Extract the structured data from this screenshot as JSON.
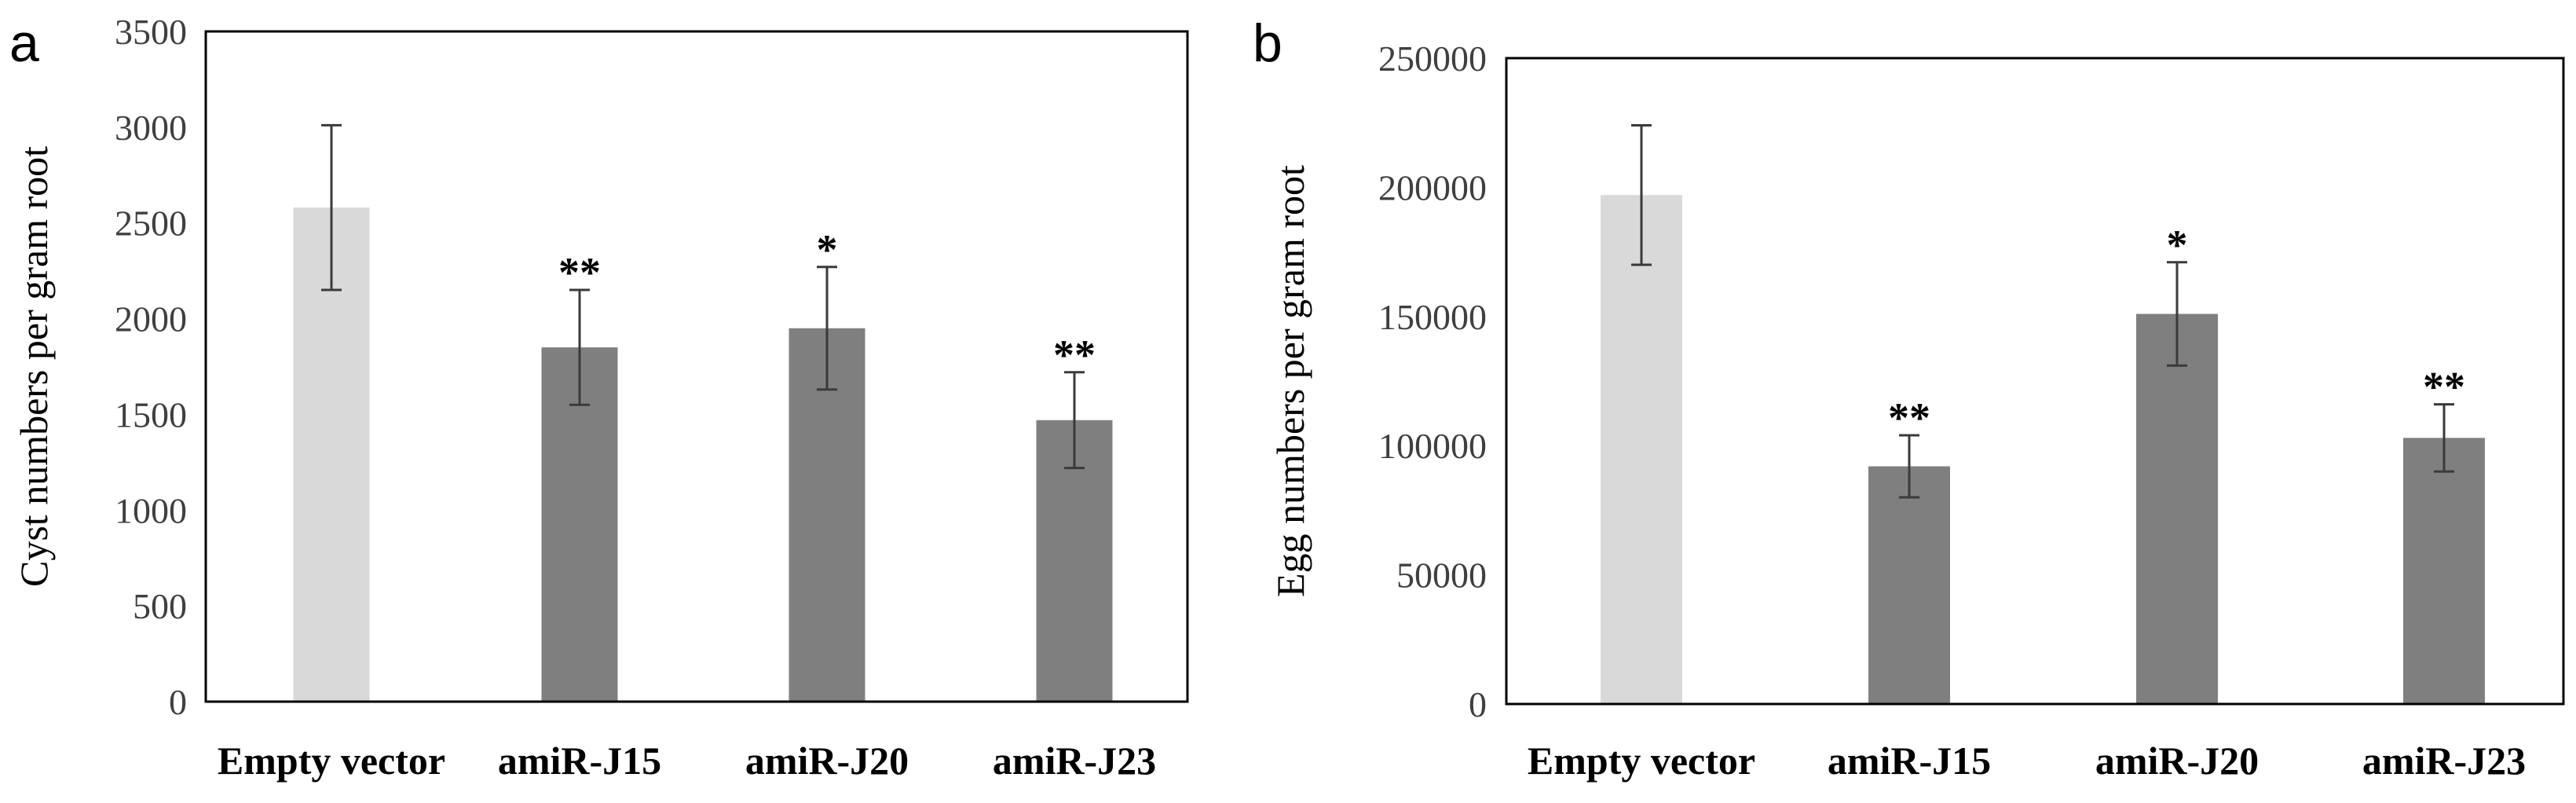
{
  "chart_data": [
    {
      "type": "bar",
      "panel": "a",
      "ylabel": "Cyst numbers per gram root",
      "ylim": [
        0,
        3500
      ],
      "yticks": [
        0,
        500,
        1000,
        1500,
        2000,
        2500,
        3000,
        3500
      ],
      "categories": [
        "Empty vector",
        "amiR-J15",
        "amiR-J20",
        "amiR-J23"
      ],
      "values": [
        2580,
        1850,
        1950,
        1470
      ],
      "errors": [
        430,
        300,
        320,
        250
      ],
      "significance": [
        "",
        "**",
        "*",
        "**"
      ],
      "colors": [
        "#d9d9d9",
        "#7f7f7f",
        "#7f7f7f",
        "#7f7f7f"
      ],
      "grid": false
    },
    {
      "type": "bar",
      "panel": "b",
      "ylabel": "Egg numbers per gram root",
      "ylim": [
        0,
        250000
      ],
      "yticks": [
        0,
        50000,
        100000,
        150000,
        200000,
        250000
      ],
      "categories": [
        "Empty vector",
        "amiR-J15",
        "amiR-J20",
        "amiR-J23"
      ],
      "values": [
        197000,
        92000,
        151000,
        103000
      ],
      "errors": [
        27000,
        12000,
        20000,
        13000
      ],
      "significance": [
        "",
        "**",
        "*",
        "**"
      ],
      "colors": [
        "#d9d9d9",
        "#7f7f7f",
        "#7f7f7f",
        "#7f7f7f"
      ],
      "grid": false
    }
  ]
}
